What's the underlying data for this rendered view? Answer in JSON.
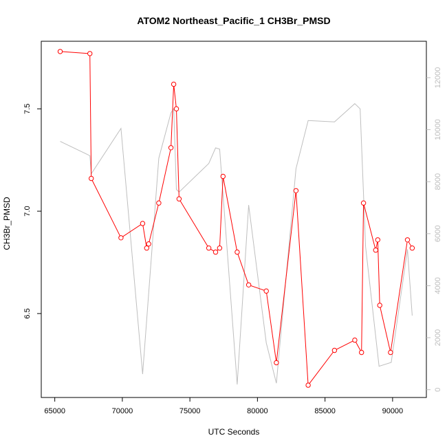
{
  "chart_data": {
    "type": "line",
    "title": "ATOM2 Northeast_Pacific_1 CH3Br_PMSD",
    "xlabel": "UTC Seconds",
    "ylabel": "CH3Br_PMSD",
    "xlim": [
      64000,
      92500
    ],
    "ylim": [
      6.09,
      7.83
    ],
    "y2lim": [
      -300,
      13400
    ],
    "x_ticks": [
      65000,
      70000,
      75000,
      80000,
      85000,
      90000
    ],
    "y_ticks": [
      6.5,
      7.0,
      7.5
    ],
    "y2_ticks": [
      0,
      2000,
      4000,
      6000,
      8000,
      10000,
      12000
    ],
    "grid": false,
    "colors": {
      "primary": "#ff0000",
      "secondary": "#bebebe"
    },
    "series": [
      {
        "axis": "left",
        "style": "line-with-points",
        "color": "#ff0000",
        "x": [
          65400,
          67600,
          67700,
          69900,
          71500,
          71800,
          71950,
          72700,
          73600,
          73800,
          74000,
          74200,
          76400,
          76900,
          77200,
          77450,
          78500,
          79350,
          80650,
          81400,
          82850,
          83750,
          85700,
          87200,
          87700,
          87850,
          88750,
          88900,
          89050,
          89850,
          91100,
          91450
        ],
        "y": [
          7.78,
          7.77,
          7.16,
          6.87,
          6.94,
          6.82,
          6.84,
          7.04,
          7.31,
          7.62,
          7.5,
          7.06,
          6.82,
          6.8,
          6.82,
          7.17,
          6.8,
          6.64,
          6.61,
          6.26,
          7.1,
          6.15,
          6.32,
          6.37,
          6.31,
          7.04,
          6.81,
          6.86,
          6.54,
          6.31,
          6.86,
          6.82
        ]
      },
      {
        "axis": "right",
        "style": "line",
        "color": "#bebebe",
        "x": [
          65400,
          67600,
          67700,
          69900,
          71500,
          72700,
          73600,
          73800,
          74000,
          74200,
          76400,
          76900,
          77200,
          78500,
          79350,
          80650,
          81400,
          82850,
          83750,
          85700,
          87200,
          87600,
          88000,
          89000,
          89900,
          91100,
          91450
        ],
        "y": [
          9550,
          9000,
          8300,
          10050,
          600,
          8900,
          10650,
          10800,
          7700,
          7600,
          8700,
          9300,
          9250,
          200,
          7100,
          1800,
          250,
          8500,
          10350,
          10300,
          11000,
          10800,
          5500,
          900,
          1050,
          5400,
          2850
        ]
      }
    ]
  }
}
